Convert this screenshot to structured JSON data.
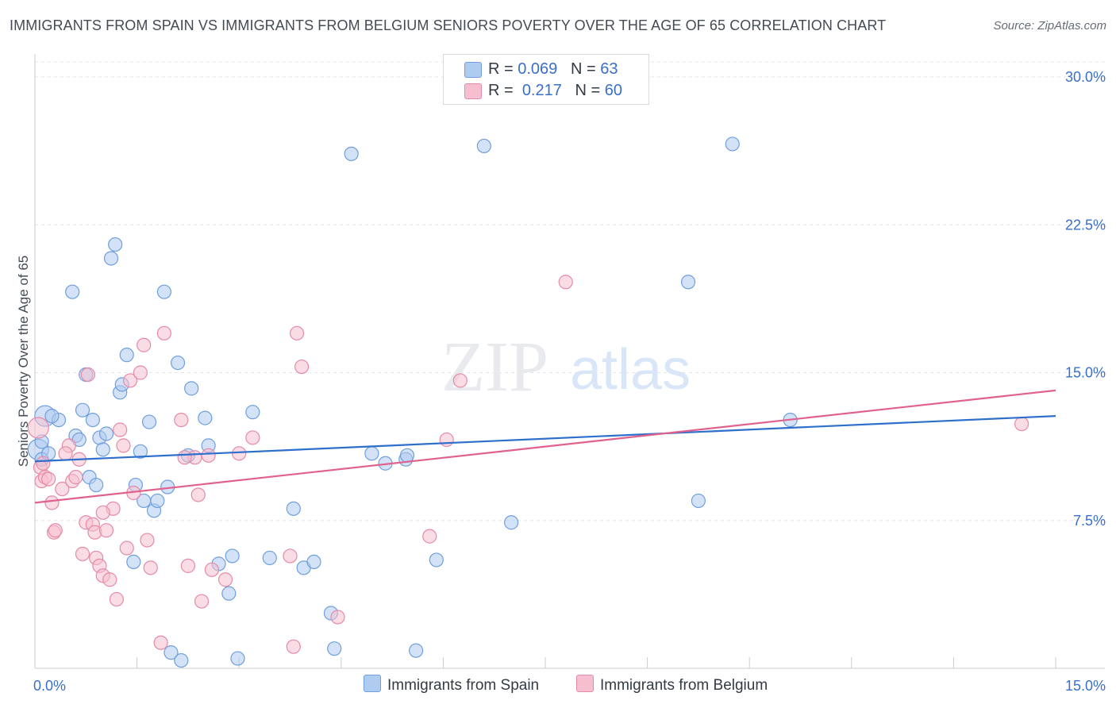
{
  "title": "IMMIGRANTS FROM SPAIN VS IMMIGRANTS FROM BELGIUM SENIORS POVERTY OVER THE AGE OF 65 CORRELATION CHART",
  "source": "Source: ZipAtlas.com",
  "watermark": {
    "zip": "ZIP",
    "atlas": "atlas"
  },
  "legend": {
    "spain": {
      "r_label": "R = ",
      "r_value": "0.069",
      "n_label": "N = ",
      "n_value": "63"
    },
    "belgium": {
      "r_label": "R = ",
      "r_value": "0.217",
      "n_label": "N = ",
      "n_value": "60"
    }
  },
  "colors": {
    "spain_fill": "#aecbf0",
    "spain_stroke": "#6f9fdc",
    "spain_line": "#2f6fcc",
    "belgium_fill": "#f6bfcf",
    "belgium_stroke": "#e58aa7",
    "belgium_line": "#e0628c",
    "tick_label": "#3a6fc9",
    "grid": "#e3e6ea"
  },
  "chart_data": {
    "type": "scatter",
    "title": "IMMIGRANTS FROM SPAIN VS IMMIGRANTS FROM BELGIUM SENIORS POVERTY OVER THE AGE OF 65 CORRELATION CHART",
    "xlabel": "",
    "ylabel": "Seniors Poverty Over the Age of 65",
    "xlim": [
      0,
      15.0
    ],
    "ylim": [
      0,
      30.0
    ],
    "x_ticks": [
      0,
      1.5,
      3.0,
      4.5,
      6.0,
      7.5,
      9.0,
      10.5,
      12.0,
      13.5,
      15.0
    ],
    "x_tick_labels": [
      {
        "value": 0,
        "label": "0.0%"
      },
      {
        "value": 15.0,
        "label": "15.0%"
      }
    ],
    "y_ticks": [
      {
        "value": 7.5,
        "label": "7.5%"
      },
      {
        "value": 15.0,
        "label": "15.0%"
      },
      {
        "value": 22.5,
        "label": "22.5%"
      },
      {
        "value": 30.0,
        "label": "30.0%"
      }
    ],
    "grid": true,
    "legend_position": "top-center",
    "series": [
      {
        "name": "Immigrants from Spain",
        "trend": {
          "x": [
            0,
            15.0
          ],
          "y": [
            10.5,
            12.8
          ]
        },
        "points": [
          {
            "x": 0.05,
            "y": 11.1,
            "big": true
          },
          {
            "x": 0.1,
            "y": 10.6
          },
          {
            "x": 0.15,
            "y": 12.8,
            "big": true
          },
          {
            "x": 0.2,
            "y": 10.9
          },
          {
            "x": 0.35,
            "y": 12.6
          },
          {
            "x": 0.55,
            "y": 19.1
          },
          {
            "x": 0.6,
            "y": 11.8
          },
          {
            "x": 0.65,
            "y": 11.6
          },
          {
            "x": 0.7,
            "y": 13.1
          },
          {
            "x": 0.75,
            "y": 14.9
          },
          {
            "x": 0.8,
            "y": 9.7
          },
          {
            "x": 0.85,
            "y": 12.6
          },
          {
            "x": 0.9,
            "y": 9.3
          },
          {
            "x": 0.95,
            "y": 11.7
          },
          {
            "x": 1.0,
            "y": 11.1
          },
          {
            "x": 1.05,
            "y": 11.9
          },
          {
            "x": 1.12,
            "y": 20.8
          },
          {
            "x": 1.18,
            "y": 21.5
          },
          {
            "x": 1.25,
            "y": 14.0
          },
          {
            "x": 1.28,
            "y": 14.4
          },
          {
            "x": 1.35,
            "y": 15.9
          },
          {
            "x": 1.45,
            "y": 5.4
          },
          {
            "x": 1.48,
            "y": 9.3
          },
          {
            "x": 1.55,
            "y": 11.0
          },
          {
            "x": 1.6,
            "y": 8.5
          },
          {
            "x": 1.68,
            "y": 12.5
          },
          {
            "x": 1.75,
            "y": 8.0
          },
          {
            "x": 1.8,
            "y": 8.5
          },
          {
            "x": 1.9,
            "y": 19.1
          },
          {
            "x": 1.95,
            "y": 9.2
          },
          {
            "x": 2.0,
            "y": 0.8
          },
          {
            "x": 2.1,
            "y": 15.5
          },
          {
            "x": 2.15,
            "y": 0.4
          },
          {
            "x": 2.25,
            "y": 10.8
          },
          {
            "x": 2.3,
            "y": 14.2
          },
          {
            "x": 2.5,
            "y": 12.7
          },
          {
            "x": 2.55,
            "y": 11.3
          },
          {
            "x": 2.7,
            "y": 5.3
          },
          {
            "x": 2.85,
            "y": 3.8
          },
          {
            "x": 2.9,
            "y": 5.7
          },
          {
            "x": 2.98,
            "y": 0.5
          },
          {
            "x": 3.2,
            "y": 13.0
          },
          {
            "x": 3.45,
            "y": 5.6
          },
          {
            "x": 3.8,
            "y": 8.1
          },
          {
            "x": 3.95,
            "y": 5.1
          },
          {
            "x": 4.1,
            "y": 5.4
          },
          {
            "x": 4.35,
            "y": 2.8
          },
          {
            "x": 4.4,
            "y": 1.0
          },
          {
            "x": 4.65,
            "y": 26.1
          },
          {
            "x": 4.95,
            "y": 10.9
          },
          {
            "x": 5.15,
            "y": 10.4
          },
          {
            "x": 5.45,
            "y": 10.6
          },
          {
            "x": 5.47,
            "y": 10.8
          },
          {
            "x": 5.6,
            "y": 0.9
          },
          {
            "x": 5.9,
            "y": 5.5
          },
          {
            "x": 6.6,
            "y": 26.5
          },
          {
            "x": 7.0,
            "y": 7.4
          },
          {
            "x": 9.6,
            "y": 19.6
          },
          {
            "x": 9.75,
            "y": 8.5
          },
          {
            "x": 10.25,
            "y": 26.6
          },
          {
            "x": 11.1,
            "y": 12.6
          },
          {
            "x": 0.1,
            "y": 11.5
          },
          {
            "x": 0.25,
            "y": 12.8
          }
        ]
      },
      {
        "name": "Immigrants from Belgium",
        "trend": {
          "x": [
            0,
            15.0
          ],
          "y": [
            8.4,
            14.1
          ]
        },
        "points": [
          {
            "x": 0.05,
            "y": 12.2,
            "big": true
          },
          {
            "x": 0.08,
            "y": 10.2
          },
          {
            "x": 0.1,
            "y": 9.5
          },
          {
            "x": 0.15,
            "y": 9.7
          },
          {
            "x": 0.25,
            "y": 8.4
          },
          {
            "x": 0.28,
            "y": 6.9
          },
          {
            "x": 0.3,
            "y": 7.0
          },
          {
            "x": 0.4,
            "y": 9.1
          },
          {
            "x": 0.5,
            "y": 11.3
          },
          {
            "x": 0.55,
            "y": 9.5
          },
          {
            "x": 0.6,
            "y": 9.7
          },
          {
            "x": 0.65,
            "y": 10.6
          },
          {
            "x": 0.7,
            "y": 5.8
          },
          {
            "x": 0.75,
            "y": 7.4
          },
          {
            "x": 0.78,
            "y": 14.9
          },
          {
            "x": 0.85,
            "y": 7.3
          },
          {
            "x": 0.88,
            "y": 6.9
          },
          {
            "x": 0.9,
            "y": 5.6
          },
          {
            "x": 0.95,
            "y": 5.2
          },
          {
            "x": 1.0,
            "y": 4.7
          },
          {
            "x": 1.05,
            "y": 7.0
          },
          {
            "x": 1.1,
            "y": 4.5
          },
          {
            "x": 1.15,
            "y": 8.1
          },
          {
            "x": 1.2,
            "y": 3.5
          },
          {
            "x": 1.25,
            "y": 12.1
          },
          {
            "x": 1.3,
            "y": 11.3
          },
          {
            "x": 1.35,
            "y": 6.1
          },
          {
            "x": 1.4,
            "y": 14.6
          },
          {
            "x": 1.45,
            "y": 8.9
          },
          {
            "x": 1.55,
            "y": 15.0
          },
          {
            "x": 1.6,
            "y": 16.4
          },
          {
            "x": 1.65,
            "y": 6.5
          },
          {
            "x": 1.7,
            "y": 5.1
          },
          {
            "x": 1.85,
            "y": 1.3
          },
          {
            "x": 1.9,
            "y": 17.0
          },
          {
            "x": 2.15,
            "y": 12.6
          },
          {
            "x": 2.25,
            "y": 5.2
          },
          {
            "x": 2.35,
            "y": 10.7
          },
          {
            "x": 2.4,
            "y": 8.8
          },
          {
            "x": 2.45,
            "y": 3.4
          },
          {
            "x": 2.55,
            "y": 10.8
          },
          {
            "x": 2.6,
            "y": 5.0
          },
          {
            "x": 2.8,
            "y": 4.5
          },
          {
            "x": 3.0,
            "y": 10.9
          },
          {
            "x": 3.2,
            "y": 11.7
          },
          {
            "x": 3.75,
            "y": 5.7
          },
          {
            "x": 3.8,
            "y": 1.1
          },
          {
            "x": 3.85,
            "y": 17.0
          },
          {
            "x": 3.92,
            "y": 15.3
          },
          {
            "x": 4.45,
            "y": 2.6
          },
          {
            "x": 5.8,
            "y": 6.7
          },
          {
            "x": 6.05,
            "y": 11.6
          },
          {
            "x": 6.25,
            "y": 14.6
          },
          {
            "x": 7.8,
            "y": 19.6
          },
          {
            "x": 14.5,
            "y": 12.4
          },
          {
            "x": 0.12,
            "y": 10.4
          },
          {
            "x": 0.45,
            "y": 10.9
          },
          {
            "x": 1.0,
            "y": 7.9
          },
          {
            "x": 2.2,
            "y": 10.7
          },
          {
            "x": 0.2,
            "y": 9.6
          }
        ]
      }
    ]
  },
  "bottom_legend": {
    "spain": "Immigrants from Spain",
    "belgium": "Immigrants from Belgium"
  }
}
